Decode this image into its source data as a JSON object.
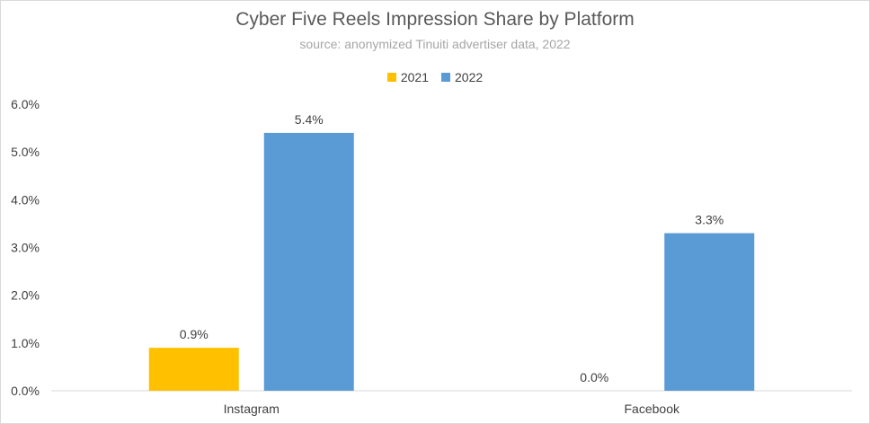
{
  "chart_data": {
    "type": "bar",
    "title": "Cyber Five Reels Impression Share by Platform",
    "subtitle": "source: anonymized Tinuiti advertiser data, 2022",
    "categories": [
      "Instagram",
      "Facebook"
    ],
    "series": [
      {
        "name": "2021",
        "values": [
          0.9,
          0.0
        ],
        "labels": [
          "0.9%",
          "0.0%"
        ],
        "color": "#FFC000"
      },
      {
        "name": "2022",
        "values": [
          5.4,
          3.3
        ],
        "labels": [
          "5.4%",
          "3.3%"
        ],
        "color": "#5B9BD5"
      }
    ],
    "ylim": [
      0,
      6
    ],
    "yticks": [
      0,
      1,
      2,
      3,
      4,
      5,
      6
    ],
    "ytick_labels": [
      "0.0%",
      "1.0%",
      "2.0%",
      "3.0%",
      "4.0%",
      "5.0%",
      "6.0%"
    ],
    "xlabel": "",
    "ylabel": "",
    "grid": false,
    "legend": "top"
  }
}
